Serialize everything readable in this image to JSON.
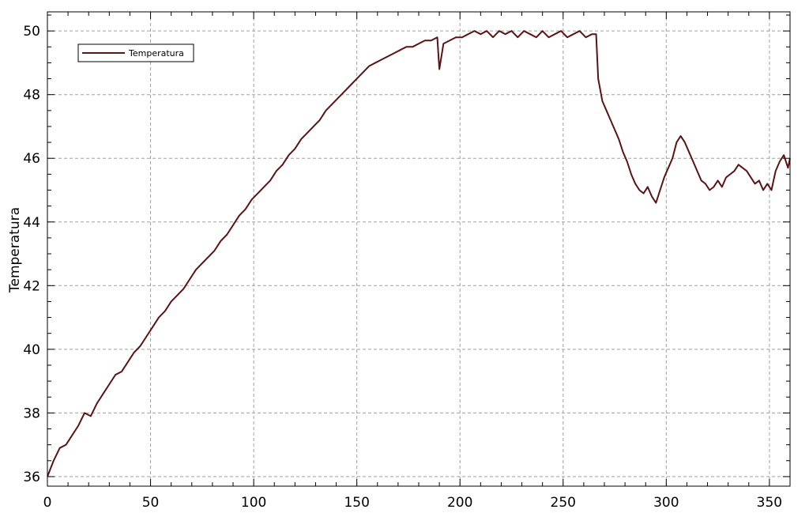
{
  "chart_data": {
    "type": "line",
    "title": "",
    "xlabel": "",
    "ylabel": "Temperatura",
    "xlim": [
      0,
      360
    ],
    "ylim": [
      35.7,
      50.6
    ],
    "xticks": [
      0,
      50,
      100,
      150,
      200,
      250,
      300,
      350
    ],
    "yticks": [
      36,
      38,
      40,
      42,
      44,
      46,
      48,
      50
    ],
    "grid": true,
    "legend_position": "top-left",
    "series": [
      {
        "name": "Temperatura",
        "color": "#5a1414",
        "x": [
          0,
          3,
          6,
          9,
          12,
          15,
          18,
          21,
          24,
          27,
          30,
          33,
          36,
          39,
          42,
          45,
          48,
          51,
          54,
          57,
          60,
          63,
          66,
          69,
          72,
          75,
          78,
          81,
          84,
          87,
          90,
          93,
          96,
          99,
          102,
          105,
          108,
          111,
          114,
          117,
          120,
          123,
          126,
          129,
          132,
          135,
          138,
          141,
          144,
          147,
          150,
          153,
          156,
          159,
          162,
          165,
          168,
          171,
          174,
          177,
          180,
          183,
          186,
          189,
          190,
          192,
          195,
          198,
          201,
          204,
          207,
          210,
          213,
          216,
          219,
          222,
          225,
          228,
          231,
          234,
          237,
          240,
          243,
          246,
          249,
          252,
          255,
          258,
          261,
          264,
          266,
          267,
          269,
          271,
          273,
          275,
          277,
          279,
          281,
          283,
          285,
          287,
          289,
          291,
          293,
          295,
          297,
          299,
          301,
          303,
          305,
          307,
          309,
          311,
          313,
          315,
          317,
          319,
          321,
          323,
          325,
          327,
          329,
          331,
          333,
          335,
          337,
          339,
          341,
          343,
          345,
          347,
          349,
          351,
          353,
          355,
          357,
          359,
          360
        ],
        "values": [
          36.0,
          36.5,
          36.9,
          37.0,
          37.3,
          37.6,
          38.0,
          37.9,
          38.3,
          38.6,
          38.9,
          39.2,
          39.3,
          39.6,
          39.9,
          40.1,
          40.4,
          40.7,
          41.0,
          41.2,
          41.5,
          41.7,
          41.9,
          42.2,
          42.5,
          42.7,
          42.9,
          43.1,
          43.4,
          43.6,
          43.9,
          44.2,
          44.4,
          44.7,
          44.9,
          45.1,
          45.3,
          45.6,
          45.8,
          46.1,
          46.3,
          46.6,
          46.8,
          47.0,
          47.2,
          47.5,
          47.7,
          47.9,
          48.1,
          48.3,
          48.5,
          48.7,
          48.9,
          49.0,
          49.1,
          49.2,
          49.3,
          49.4,
          49.5,
          49.5,
          49.6,
          49.7,
          49.7,
          49.8,
          48.8,
          49.6,
          49.7,
          49.8,
          49.8,
          49.9,
          50.0,
          49.9,
          50.0,
          49.8,
          50.0,
          49.9,
          50.0,
          49.8,
          50.0,
          49.9,
          49.8,
          50.0,
          49.8,
          49.9,
          50.0,
          49.8,
          49.9,
          50.0,
          49.8,
          49.9,
          49.9,
          48.5,
          47.8,
          47.5,
          47.2,
          46.9,
          46.6,
          46.2,
          45.9,
          45.5,
          45.2,
          45.0,
          44.9,
          45.1,
          44.8,
          44.6,
          45.0,
          45.4,
          45.7,
          46.0,
          46.5,
          46.7,
          46.5,
          46.2,
          45.9,
          45.6,
          45.3,
          45.2,
          45.0,
          45.1,
          45.3,
          45.1,
          45.4,
          45.5,
          45.6,
          45.8,
          45.7,
          45.6,
          45.4,
          45.2,
          45.3,
          45.0,
          45.2,
          45.0,
          45.6,
          45.9,
          46.1,
          45.7,
          46.0
        ]
      }
    ]
  }
}
